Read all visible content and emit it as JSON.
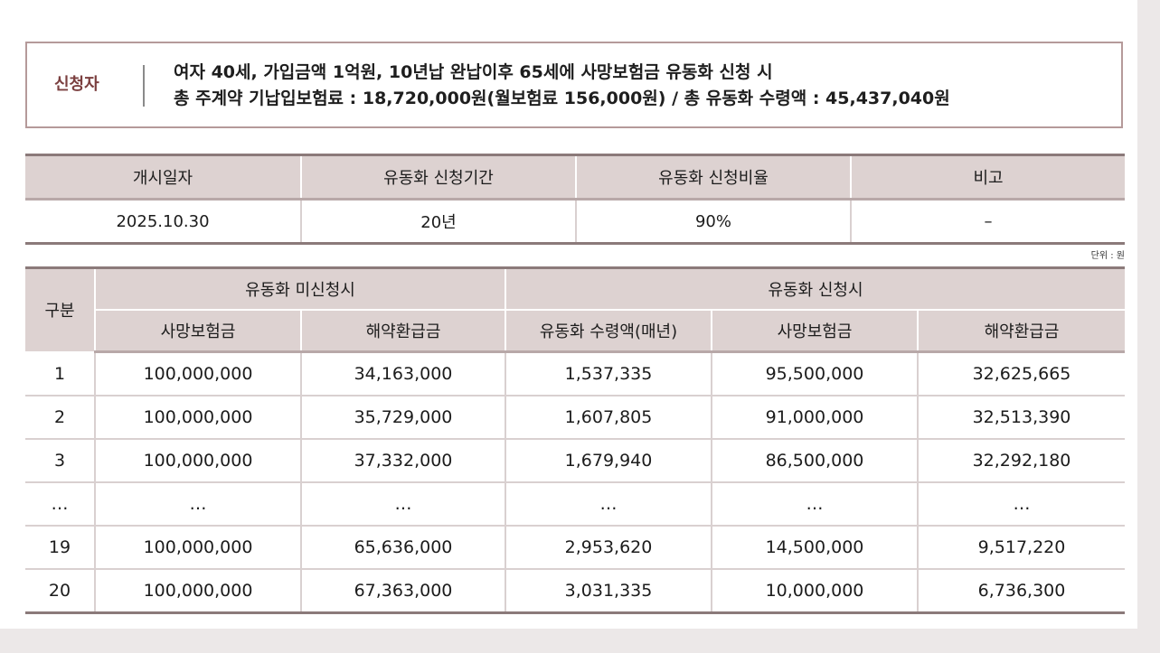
{
  "applicant": {
    "label": "신청자",
    "line1": "여자 40세, 가입금액 1억원, 10년납 완납이후 65세에 사망보험금 유동화 신청 시",
    "line2": "총 주계약 기납입보험료 : 18,720,000원(월보험료 156,000원) / 총 유동화 수령액 : 45,437,040원"
  },
  "info": {
    "headers": [
      "개시일자",
      "유동화 신청기간",
      "유동화 신청비율",
      "비고"
    ],
    "values": [
      "2025.10.30",
      "20년",
      "90%",
      "–"
    ]
  },
  "unit_note": "단위 : 원",
  "main": {
    "row_header": "구분",
    "group_not_applied": "유동화 미신청시",
    "group_applied": "유동화 신청시",
    "sub_headers": [
      "사망보험금",
      "해약환급금",
      "유동화 수령액(매년)",
      "사망보험금",
      "해약환급금"
    ],
    "rows": [
      [
        "1",
        "100,000,000",
        "34,163,000",
        "1,537,335",
        "95,500,000",
        "32,625,665"
      ],
      [
        "2",
        "100,000,000",
        "35,729,000",
        "1,607,805",
        "91,000,000",
        "32,513,390"
      ],
      [
        "3",
        "100,000,000",
        "37,332,000",
        "1,679,940",
        "86,500,000",
        "32,292,180"
      ],
      [
        "…",
        "…",
        "…",
        "…",
        "…",
        "…"
      ],
      [
        "19",
        "100,000,000",
        "65,636,000",
        "2,953,620",
        "14,500,000",
        "9,517,220"
      ],
      [
        "20",
        "100,000,000",
        "67,363,000",
        "3,031,335",
        "10,000,000",
        "6,736,300"
      ]
    ]
  }
}
